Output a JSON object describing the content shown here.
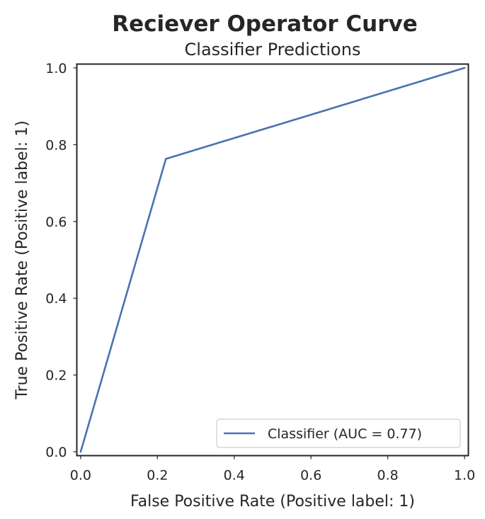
{
  "figure": {
    "suptitle": "Reciever Operator Curve",
    "title": "Classifier Predictions"
  },
  "chart_data": {
    "type": "line",
    "title": "Classifier Predictions",
    "suptitle": "Reciever Operator Curve",
    "xlabel": "False Positive Rate (Positive label: 1)",
    "ylabel": "True Positive Rate (Positive label: 1)",
    "xlim": [
      -0.01,
      1.01
    ],
    "ylim": [
      -0.01,
      1.01
    ],
    "xticks": [
      0.0,
      0.2,
      0.4,
      0.6,
      0.8,
      1.0
    ],
    "yticks": [
      0.0,
      0.2,
      0.4,
      0.6,
      0.8,
      1.0
    ],
    "xtick_labels": [
      "0.0",
      "0.2",
      "0.4",
      "0.6",
      "0.8",
      "1.0"
    ],
    "ytick_labels": [
      "0.0",
      "0.2",
      "0.4",
      "0.6",
      "0.8",
      "1.0"
    ],
    "grid": false,
    "legend_position": "lower-right",
    "series": [
      {
        "name": "Classifier (AUC = 0.77)",
        "color": "#4c72b0",
        "x": [
          0.0,
          0.222,
          1.0
        ],
        "y": [
          0.0,
          0.763,
          1.0
        ]
      }
    ]
  }
}
